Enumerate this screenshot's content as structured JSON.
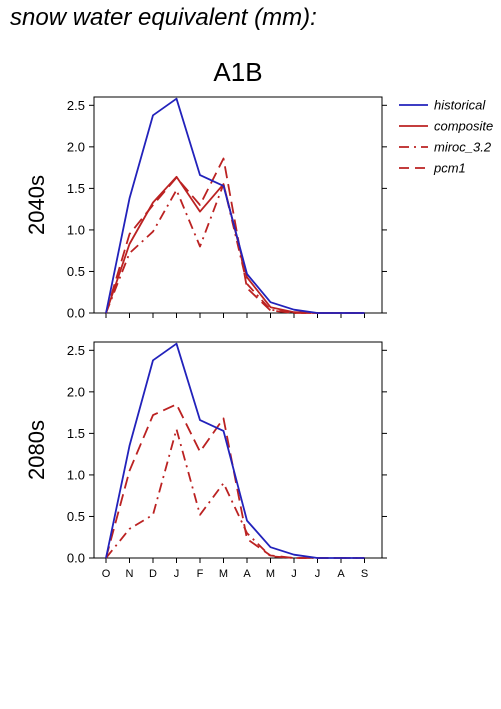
{
  "figure_title": "snow water equivalent (mm):",
  "colors": {
    "historical": "#2222bb",
    "model": "#bb2222"
  },
  "chart_data": {
    "type": "line",
    "title": "A1B",
    "x": [
      "O",
      "N",
      "D",
      "J",
      "F",
      "M",
      "A",
      "M",
      "J",
      "J",
      "A",
      "S"
    ],
    "ylim": [
      0,
      2.6
    ],
    "yticks": [
      "0.0",
      "0.5",
      "1.0",
      "1.5",
      "2.0",
      "2.5"
    ],
    "legend_position": "right",
    "legend": [
      {
        "name": "historical",
        "dash": "solid",
        "color": "historical"
      },
      {
        "name": "composite",
        "dash": "solid",
        "color": "model"
      },
      {
        "name": "miroc_3.2",
        "dash": "dashdot",
        "color": "model"
      },
      {
        "name": "pcm1",
        "dash": "dashed",
        "color": "model"
      }
    ],
    "panels": [
      {
        "label": "2040s",
        "series": [
          {
            "name": "historical",
            "values": [
              0.0,
              1.38,
              2.38,
              2.58,
              1.66,
              1.53,
              0.47,
              0.13,
              0.04,
              0.0,
              0.0,
              0.0
            ]
          },
          {
            "name": "composite",
            "values": [
              0.0,
              0.83,
              1.33,
              1.64,
              1.22,
              1.55,
              0.43,
              0.07,
              0.01,
              0.0,
              0.0,
              0.0
            ]
          },
          {
            "name": "miroc_3.2",
            "values": [
              0.0,
              0.72,
              0.98,
              1.48,
              0.8,
              1.55,
              0.35,
              0.04,
              0.0,
              0.0,
              0.0,
              0.0
            ]
          },
          {
            "name": "pcm1",
            "values": [
              0.0,
              0.95,
              1.3,
              1.63,
              1.3,
              1.86,
              0.3,
              0.03,
              0.0,
              0.0,
              0.0,
              0.0
            ]
          }
        ]
      },
      {
        "label": "2080s",
        "series": [
          {
            "name": "historical",
            "values": [
              0.0,
              1.35,
              2.38,
              2.58,
              1.66,
              1.53,
              0.45,
              0.13,
              0.04,
              0.0,
              0.0,
              0.0
            ]
          },
          {
            "name": "composite",
            "values": [
              null,
              null,
              null,
              null,
              null,
              null,
              null,
              null,
              null,
              null,
              null,
              null
            ]
          },
          {
            "name": "miroc_3.2",
            "values": [
              0.0,
              0.35,
              0.52,
              1.55,
              0.52,
              0.9,
              0.3,
              0.02,
              0.0,
              0.0,
              0.0,
              0.0
            ]
          },
          {
            "name": "pcm1",
            "values": [
              0.0,
              1.05,
              1.72,
              1.85,
              1.28,
              1.68,
              0.23,
              0.03,
              0.0,
              0.0,
              0.0,
              0.0
            ]
          }
        ]
      }
    ]
  }
}
